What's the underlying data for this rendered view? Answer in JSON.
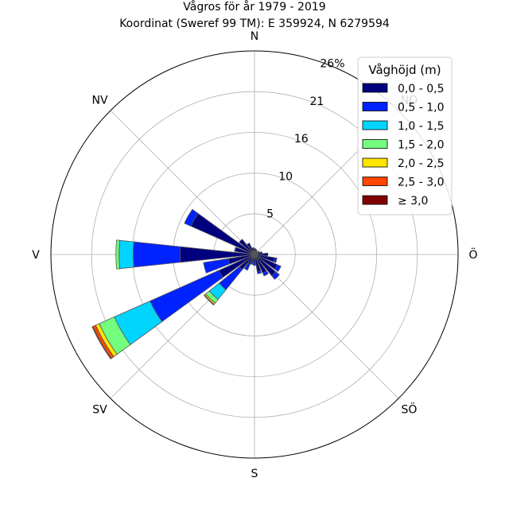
{
  "chart_data": {
    "type": "polar-bar",
    "title": "Vågros för år 1979 - 2019",
    "subtitle": "Koordinat (Sweref 99 TM): E 359924, N 6279594",
    "directions": [
      "N",
      "NO",
      "Ö",
      "SÖ",
      "S",
      "SV",
      "V",
      "NV"
    ],
    "ring_ticks": [
      "5",
      "10",
      "16",
      "21",
      "26%"
    ],
    "ring_values": [
      5.2,
      10.4,
      15.6,
      20.8,
      26.0
    ],
    "r_max": 26.0,
    "legend": {
      "title": "Våghöjd (m)",
      "placement": "top-right",
      "entries": [
        "0,0 - 0,5",
        "0,5 - 1,0",
        "1,0 - 1,5",
        "1,5 - 2,0",
        "2,0 - 2,5",
        "2,5 - 3,0",
        "≥ 3,0"
      ]
    },
    "colors": [
      "#00007f",
      "#0022ff",
      "#00d4ff",
      "#73ff7d",
      "#ffe500",
      "#ff4700",
      "#7f0000"
    ],
    "sector_width_deg": 12,
    "sectors": [
      {
        "direction_deg": 0,
        "values": [
          0.8,
          0,
          0,
          0,
          0,
          0,
          0
        ]
      },
      {
        "direction_deg": 15,
        "values": [
          0.7,
          0,
          0,
          0,
          0,
          0,
          0
        ]
      },
      {
        "direction_deg": 30,
        "values": [
          0.6,
          0,
          0,
          0,
          0,
          0,
          0
        ]
      },
      {
        "direction_deg": 45,
        "values": [
          0.4,
          0,
          0,
          0,
          0,
          0,
          0
        ]
      },
      {
        "direction_deg": 60,
        "values": [
          0.7,
          0,
          0,
          0,
          0,
          0,
          0
        ]
      },
      {
        "direction_deg": 75,
        "values": [
          1.0,
          0,
          0,
          0,
          0,
          0,
          0
        ]
      },
      {
        "direction_deg": 90,
        "values": [
          1.7,
          0,
          0,
          0,
          0,
          0,
          0
        ]
      },
      {
        "direction_deg": 105,
        "values": [
          2.6,
          0.3,
          0,
          0,
          0,
          0,
          0
        ]
      },
      {
        "direction_deg": 120,
        "values": [
          3.2,
          0.5,
          0,
          0,
          0,
          0,
          0
        ]
      },
      {
        "direction_deg": 135,
        "values": [
          3.5,
          0.6,
          0,
          0,
          0,
          0,
          0
        ]
      },
      {
        "direction_deg": 150,
        "values": [
          2.6,
          0.4,
          0,
          0,
          0,
          0,
          0
        ]
      },
      {
        "direction_deg": 165,
        "values": [
          2.2,
          0.3,
          0,
          0,
          0,
          0,
          0
        ]
      },
      {
        "direction_deg": 180,
        "values": [
          1.2,
          0.2,
          0,
          0,
          0,
          0,
          0
        ]
      },
      {
        "direction_deg": 195,
        "values": [
          1.0,
          0.3,
          0,
          0,
          0,
          0,
          0
        ]
      },
      {
        "direction_deg": 210,
        "values": [
          1.4,
          0.8,
          0,
          0,
          0,
          0,
          0
        ]
      },
      {
        "direction_deg": 225,
        "values": [
          2.5,
          3.3,
          1.6,
          0.6,
          0.2,
          0.1,
          0
        ]
      },
      {
        "direction_deg": 240,
        "values": [
          5.0,
          9.6,
          5.0,
          2.1,
          0.5,
          0.4,
          0.1
        ]
      },
      {
        "direction_deg": 255,
        "values": [
          3.4,
          3.2,
          0,
          0,
          0,
          0,
          0
        ]
      },
      {
        "direction_deg": 270,
        "values": [
          9.5,
          6.0,
          1.8,
          0.4,
          0,
          0,
          0
        ]
      },
      {
        "direction_deg": 285,
        "values": [
          2.5,
          0.1,
          0,
          0,
          0,
          0,
          0
        ]
      },
      {
        "direction_deg": 300,
        "values": [
          8.9,
          0.9,
          0,
          0,
          0,
          0,
          0
        ]
      },
      {
        "direction_deg": 315,
        "values": [
          2.5,
          0,
          0,
          0,
          0,
          0,
          0
        ]
      },
      {
        "direction_deg": 330,
        "values": [
          1.6,
          0,
          0,
          0,
          0,
          0,
          0
        ]
      },
      {
        "direction_deg": 345,
        "values": [
          0.9,
          0,
          0,
          0,
          0,
          0,
          0
        ]
      }
    ]
  }
}
